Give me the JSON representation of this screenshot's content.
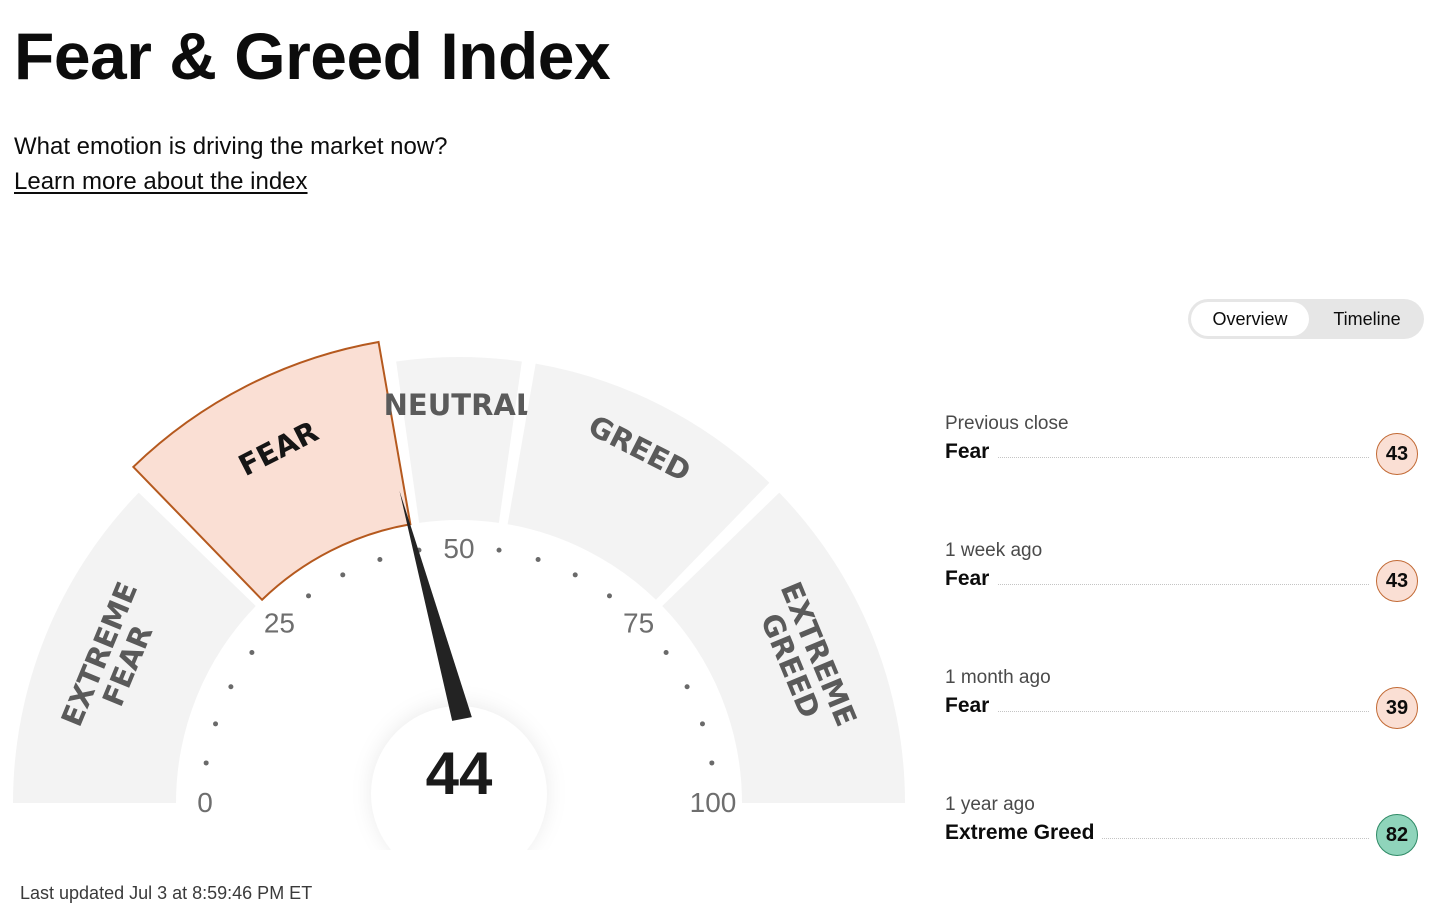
{
  "page": {
    "title": "Fear & Greed Index",
    "subtitle": "What emotion is driving the market now?",
    "learn_more_link": "Learn more about the index",
    "last_updated": "Last updated Jul 3 at 8:59:46 PM ET"
  },
  "view_toggle": {
    "options": [
      "Overview",
      "Timeline"
    ],
    "selected": "Overview"
  },
  "gauge": {
    "value": 44,
    "active_zone": "FEAR",
    "scale_min": 0,
    "scale_max": 100,
    "tick_labels": [
      "0",
      "25",
      "50",
      "75",
      "100"
    ],
    "zones": [
      {
        "label_lines": [
          "EXTREME",
          "FEAR"
        ]
      },
      {
        "label_lines": [
          "FEAR"
        ]
      },
      {
        "label_lines": [
          "NEUTRAL"
        ]
      },
      {
        "label_lines": [
          "GREED"
        ]
      },
      {
        "label_lines": [
          "EXTREME",
          "GREED"
        ]
      }
    ],
    "colors": {
      "zone_fill": "#f3f3f3",
      "active_fill": "#fadfd4",
      "active_stroke": "#b5591e",
      "zone_text": "#5a5a5a",
      "active_text": "#151515",
      "needle": "#232323"
    }
  },
  "history": [
    {
      "label": "Previous close",
      "rating": "Fear",
      "value": 43,
      "tone": "fear"
    },
    {
      "label": "1 week ago",
      "rating": "Fear",
      "value": 43,
      "tone": "fear"
    },
    {
      "label": "1 month ago",
      "rating": "Fear",
      "value": 39,
      "tone": "fear"
    },
    {
      "label": "1 year ago",
      "rating": "Extreme Greed",
      "value": 82,
      "tone": "greed"
    }
  ]
}
